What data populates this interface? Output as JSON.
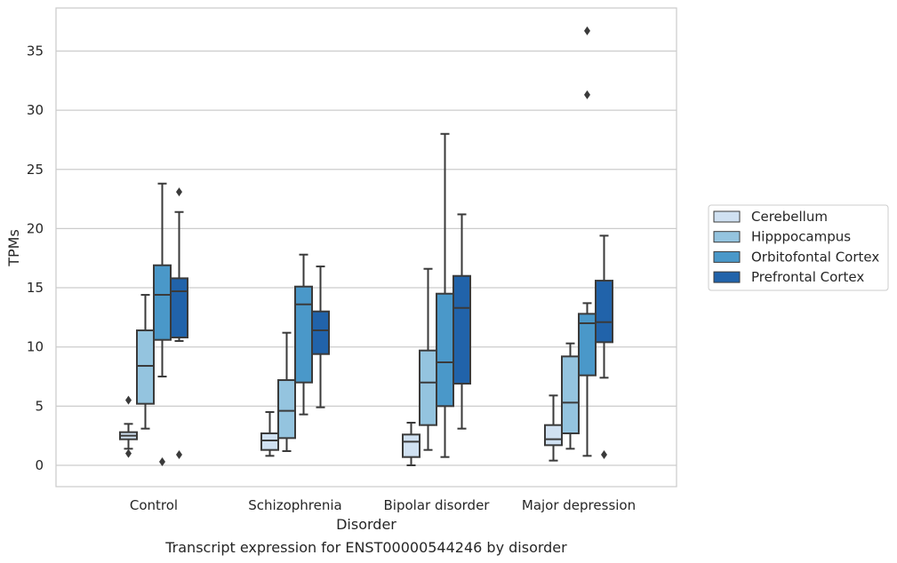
{
  "caption": "Transcript expression for ENST00000544246 by disorder",
  "chart_data": {
    "type": "box",
    "xlabel": "Disorder",
    "ylabel": "TPMs",
    "ylim": [
      -1.8,
      38.2
    ],
    "yticks": [
      0,
      5,
      10,
      15,
      20,
      25,
      30,
      35
    ],
    "grid": "horizontal",
    "legend_position": "right",
    "categories": [
      "Control",
      "Schizophrenia",
      "Bipolar disorder",
      "Major depression"
    ],
    "series": [
      {
        "name": "Cerebellum",
        "color": "#d0e1f2",
        "boxes": [
          {
            "whisker_low": 1.4,
            "q1": 2.2,
            "median": 2.5,
            "q3": 2.8,
            "whisker_high": 3.5,
            "outliers": [
              1.0,
              5.5
            ]
          },
          {
            "whisker_low": 0.8,
            "q1": 1.3,
            "median": 2.1,
            "q3": 2.7,
            "whisker_high": 4.5,
            "outliers": []
          },
          {
            "whisker_low": 0.0,
            "q1": 0.7,
            "median": 2.0,
            "q3": 2.6,
            "whisker_high": 3.6,
            "outliers": []
          },
          {
            "whisker_low": 0.4,
            "q1": 1.7,
            "median": 2.2,
            "q3": 3.4,
            "whisker_high": 5.9,
            "outliers": []
          }
        ]
      },
      {
        "name": "Hipppocampus",
        "color": "#94c4df",
        "boxes": [
          {
            "whisker_low": 3.1,
            "q1": 5.2,
            "median": 8.4,
            "q3": 11.4,
            "whisker_high": 14.4,
            "outliers": []
          },
          {
            "whisker_low": 1.2,
            "q1": 2.3,
            "median": 4.6,
            "q3": 7.2,
            "whisker_high": 11.2,
            "outliers": []
          },
          {
            "whisker_low": 1.3,
            "q1": 3.4,
            "median": 7.0,
            "q3": 9.7,
            "whisker_high": 16.6,
            "outliers": []
          },
          {
            "whisker_low": 1.4,
            "q1": 2.7,
            "median": 5.3,
            "q3": 9.2,
            "whisker_high": 10.3,
            "outliers": []
          }
        ]
      },
      {
        "name": "Orbitofontal Cortex",
        "color": "#4a98c9",
        "boxes": [
          {
            "whisker_low": 7.5,
            "q1": 10.6,
            "median": 14.4,
            "q3": 16.9,
            "whisker_high": 23.8,
            "outliers": [
              0.3
            ]
          },
          {
            "whisker_low": 4.3,
            "q1": 7.0,
            "median": 13.6,
            "q3": 15.1,
            "whisker_high": 17.8,
            "outliers": []
          },
          {
            "whisker_low": 0.7,
            "q1": 5.0,
            "median": 8.7,
            "q3": 14.5,
            "whisker_high": 28.0,
            "outliers": []
          },
          {
            "whisker_low": 0.8,
            "q1": 7.6,
            "median": 12.0,
            "q3": 12.8,
            "whisker_high": 13.7,
            "outliers": [
              31.3,
              36.7
            ]
          }
        ]
      },
      {
        "name": "Prefrontal Cortex",
        "color": "#2163aa",
        "boxes": [
          {
            "whisker_low": 10.5,
            "q1": 10.8,
            "median": 14.7,
            "q3": 15.8,
            "whisker_high": 21.4,
            "outliers": [
              23.1,
              0.9
            ]
          },
          {
            "whisker_low": 4.9,
            "q1": 9.4,
            "median": 11.4,
            "q3": 13.0,
            "whisker_high": 16.8,
            "outliers": []
          },
          {
            "whisker_low": 3.1,
            "q1": 6.9,
            "median": 13.3,
            "q3": 16.0,
            "whisker_high": 21.2,
            "outliers": []
          },
          {
            "whisker_low": 7.4,
            "q1": 10.4,
            "median": 12.1,
            "q3": 15.6,
            "whisker_high": 19.4,
            "outliers": [
              0.9
            ]
          }
        ]
      }
    ]
  }
}
